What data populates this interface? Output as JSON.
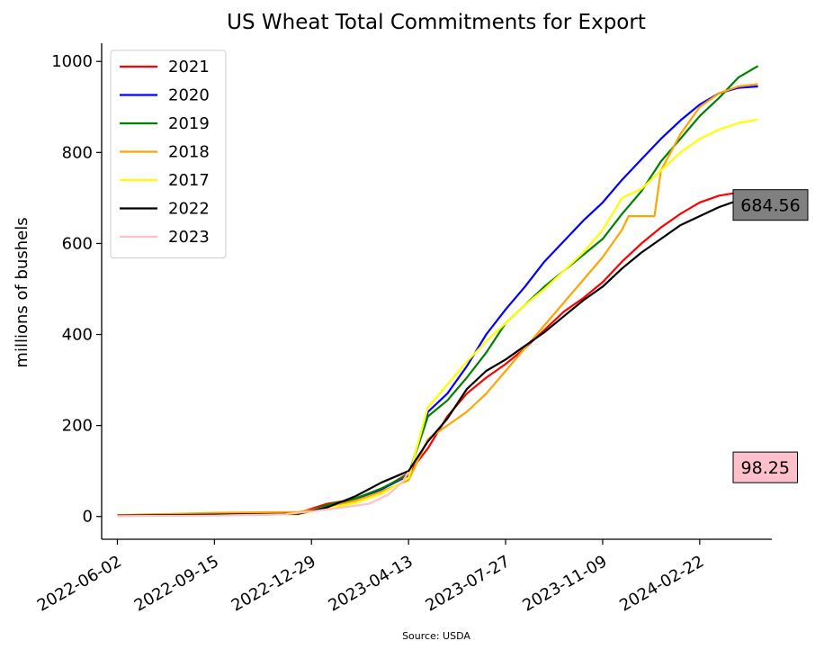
{
  "chart_data": {
    "type": "line",
    "title": "US Wheat Total Commitments for Export",
    "xlabel": "",
    "ylabel": "millions of bushels",
    "source": "Source: USDA",
    "xlim": [
      "2022-05-16",
      "2024-05-10"
    ],
    "ylim": [
      -50,
      1040
    ],
    "x_ticks": [
      "2022-06-02",
      "2022-09-15",
      "2022-12-29",
      "2023-04-13",
      "2023-07-27",
      "2023-11-09",
      "2024-02-22"
    ],
    "y_ticks": [
      0,
      200,
      400,
      600,
      800,
      1000
    ],
    "legend_position": "top-left",
    "grid": false,
    "series": [
      {
        "name": "2021",
        "color": "#ff0000",
        "x": [
          "2022-06-02",
          "2022-09-15",
          "2022-12-15",
          "2023-01-15",
          "2023-02-15",
          "2023-03-15",
          "2023-04-13",
          "2023-05-04",
          "2023-05-25",
          "2023-06-15",
          "2023-07-06",
          "2023-07-27",
          "2023-08-17",
          "2023-09-07",
          "2023-09-28",
          "2023-10-19",
          "2023-11-09",
          "2023-11-30",
          "2023-12-21",
          "2024-01-11",
          "2024-02-01",
          "2024-02-22",
          "2024-03-14",
          "2024-04-04",
          "2024-04-25"
        ],
        "y": [
          2,
          5,
          8,
          28,
          38,
          60,
          95,
          150,
          220,
          270,
          305,
          335,
          370,
          410,
          450,
          480,
          515,
          560,
          600,
          635,
          665,
          690,
          705,
          712,
          715
        ]
      },
      {
        "name": "2020",
        "color": "#0000ff",
        "x": [
          "2022-06-02",
          "2022-09-15",
          "2022-12-15",
          "2023-01-15",
          "2023-02-15",
          "2023-03-15",
          "2023-04-13",
          "2023-05-04",
          "2023-05-25",
          "2023-06-15",
          "2023-07-06",
          "2023-07-27",
          "2023-08-17",
          "2023-09-07",
          "2023-09-28",
          "2023-10-19",
          "2023-11-09",
          "2023-11-30",
          "2023-12-21",
          "2024-01-11",
          "2024-02-01",
          "2024-02-22",
          "2024-03-14",
          "2024-04-04",
          "2024-04-25"
        ],
        "y": [
          2,
          4,
          7,
          22,
          35,
          60,
          90,
          230,
          270,
          330,
          400,
          455,
          505,
          560,
          605,
          650,
          690,
          740,
          785,
          830,
          870,
          905,
          930,
          942,
          945
        ]
      },
      {
        "name": "2019",
        "color": "#008000",
        "x": [
          "2022-06-02",
          "2022-09-15",
          "2022-12-15",
          "2023-01-15",
          "2023-02-15",
          "2023-03-15",
          "2023-04-13",
          "2023-05-04",
          "2023-05-25",
          "2023-06-15",
          "2023-07-06",
          "2023-07-27",
          "2023-08-17",
          "2023-09-07",
          "2023-09-28",
          "2023-10-19",
          "2023-11-09",
          "2023-11-30",
          "2023-12-21",
          "2024-01-11",
          "2024-02-01",
          "2024-02-22",
          "2024-03-14",
          "2024-04-04",
          "2024-04-25"
        ],
        "y": [
          1,
          3,
          5,
          25,
          40,
          62,
          92,
          220,
          255,
          305,
          360,
          425,
          465,
          505,
          540,
          575,
          610,
          665,
          715,
          780,
          830,
          880,
          920,
          965,
          990
        ]
      },
      {
        "name": "2018",
        "color": "#ffa500",
        "x": [
          "2022-06-02",
          "2022-09-15",
          "2022-12-15",
          "2023-01-15",
          "2023-02-15",
          "2023-03-15",
          "2023-04-13",
          "2023-05-04",
          "2023-05-25",
          "2023-06-15",
          "2023-07-06",
          "2023-07-27",
          "2023-08-17",
          "2023-09-07",
          "2023-09-28",
          "2023-10-19",
          "2023-11-09",
          "2023-11-30",
          "2023-12-07",
          "2024-01-04",
          "2024-01-11",
          "2024-02-01",
          "2024-02-22",
          "2024-03-14",
          "2024-04-04",
          "2024-04-25"
        ],
        "y": [
          3,
          8,
          10,
          20,
          35,
          55,
          80,
          170,
          200,
          230,
          270,
          320,
          370,
          420,
          470,
          520,
          570,
          630,
          660,
          660,
          760,
          840,
          900,
          930,
          945,
          950
        ]
      },
      {
        "name": "2017",
        "color": "#ffff00",
        "x": [
          "2022-06-02",
          "2022-09-15",
          "2022-12-15",
          "2023-01-15",
          "2023-02-15",
          "2023-03-15",
          "2023-04-13",
          "2023-05-04",
          "2023-05-25",
          "2023-06-15",
          "2023-07-06",
          "2023-07-27",
          "2023-08-17",
          "2023-09-07",
          "2023-09-28",
          "2023-10-19",
          "2023-11-09",
          "2023-11-30",
          "2023-12-21",
          "2024-01-11",
          "2024-02-01",
          "2024-02-22",
          "2024-03-14",
          "2024-04-04",
          "2024-04-25"
        ],
        "y": [
          1,
          3,
          5,
          18,
          30,
          50,
          85,
          240,
          290,
          340,
          385,
          425,
          465,
          500,
          540,
          580,
          630,
          700,
          720,
          760,
          800,
          830,
          850,
          865,
          872
        ]
      },
      {
        "name": "2022",
        "color": "#000000",
        "x": [
          "2022-06-02",
          "2022-09-15",
          "2022-12-15",
          "2023-01-15",
          "2023-02-15",
          "2023-03-15",
          "2023-04-13",
          "2023-05-04",
          "2023-05-25",
          "2023-06-15",
          "2023-07-06",
          "2023-07-27",
          "2023-08-17",
          "2023-09-07",
          "2023-09-28",
          "2023-10-19",
          "2023-11-09",
          "2023-11-30",
          "2023-12-21",
          "2024-01-11",
          "2024-02-01",
          "2024-02-22",
          "2024-03-14",
          "2024-04-04",
          "2024-04-25"
        ],
        "y": [
          2,
          4,
          6,
          20,
          45,
          75,
          100,
          165,
          215,
          280,
          320,
          345,
          375,
          405,
          440,
          475,
          505,
          545,
          580,
          610,
          640,
          660,
          680,
          695,
          685
        ]
      },
      {
        "name": "2023",
        "color": "#ffc0cb",
        "x": [
          "2022-06-02",
          "2022-09-15",
          "2022-12-01",
          "2023-01-01",
          "2023-02-01",
          "2023-03-01",
          "2023-03-22",
          "2023-04-06",
          "2023-04-13"
        ],
        "y": [
          1,
          2,
          5,
          12,
          20,
          28,
          48,
          75,
          98
        ]
      }
    ],
    "annotations": [
      {
        "text": "684.56",
        "y": 684.56,
        "box_color": "#808080"
      },
      {
        "text": "98.25",
        "y": 108,
        "box_color": "#ffc0cb"
      }
    ]
  }
}
